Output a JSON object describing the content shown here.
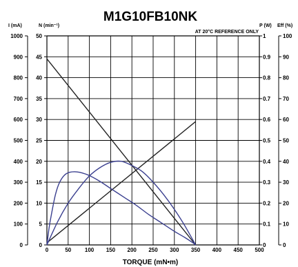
{
  "chart_data": {
    "type": "line",
    "title": "M1G10FB10NK",
    "note": "AT 20°C REFERENCE ONLY",
    "xlabel": "TORQUE (mN•m)",
    "xlim": [
      0,
      500
    ],
    "x_ticks": [
      "0",
      "50",
      "100",
      "150",
      "200",
      "250",
      "300",
      "350",
      "400",
      "450",
      "500"
    ],
    "grid": true,
    "axes": {
      "current": {
        "label": "I (mA)",
        "range": [
          0,
          1000
        ],
        "ticks": [
          "0",
          "100",
          "200",
          "300",
          "400",
          "500",
          "600",
          "700",
          "800",
          "900",
          "1000"
        ]
      },
      "speed": {
        "label": "N (min⁻¹)",
        "range": [
          0,
          50
        ],
        "ticks": [
          "0",
          "5",
          "10",
          "15",
          "20",
          "25",
          "30",
          "35",
          "40",
          "45",
          "50"
        ]
      },
      "power": {
        "label": "P (W)",
        "range": [
          0,
          1
        ],
        "ticks": [
          "0",
          "0.1",
          "0.2",
          "0.3",
          "0.4",
          "0.5",
          "0.6",
          "0.7",
          "0.8",
          "0.9",
          "1"
        ]
      },
      "efficiency": {
        "label": "Eff (%)",
        "range": [
          0,
          100
        ],
        "ticks": [
          "0",
          "10",
          "20",
          "30",
          "40",
          "50",
          "60",
          "70",
          "80",
          "90",
          "100"
        ]
      }
    },
    "series": [
      {
        "axis": "speed",
        "color": "#222222",
        "x": [
          0,
          350
        ],
        "y": [
          44.5,
          0
        ]
      },
      {
        "axis": "current",
        "color": "#222222",
        "x": [
          0,
          350
        ],
        "y": [
          10,
          590
        ]
      },
      {
        "axis": "power",
        "color": "#3a3f8f",
        "x": [
          0,
          25,
          50,
          75,
          100,
          125,
          150,
          175,
          200,
          225,
          250,
          275,
          300,
          325,
          350
        ],
        "y": [
          0,
          0.11,
          0.2,
          0.27,
          0.33,
          0.37,
          0.395,
          0.4,
          0.38,
          0.35,
          0.3,
          0.24,
          0.17,
          0.09,
          0
        ]
      },
      {
        "axis": "efficiency",
        "color": "#3a3f8f",
        "x": [
          0,
          5,
          10,
          20,
          30,
          45,
          65,
          90,
          120,
          150,
          180,
          210,
          240,
          270,
          300,
          325,
          345,
          350
        ],
        "y": [
          0,
          8,
          14,
          24,
          30,
          34,
          35,
          34,
          31,
          27,
          23,
          19,
          14.5,
          10.5,
          6.5,
          3.5,
          0.8,
          0
        ]
      }
    ]
  }
}
